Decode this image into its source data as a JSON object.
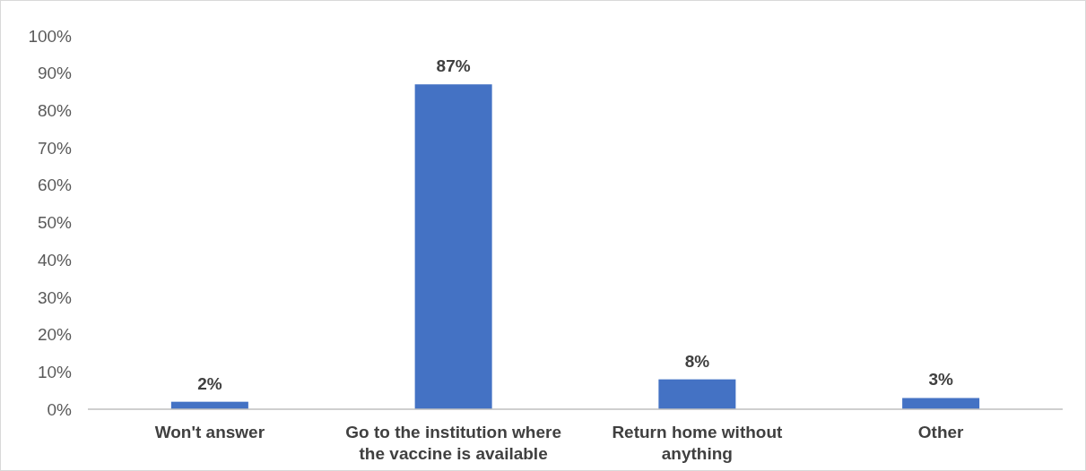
{
  "chart_data": {
    "type": "bar",
    "categories": [
      "Won't answer",
      "Go to the institution where the vaccine is available",
      "Return home without anything",
      "Other"
    ],
    "values": [
      2,
      87,
      8,
      3
    ],
    "color": "#4472c4",
    "value_labels": [
      "2%",
      "87%",
      "8%",
      "3%"
    ],
    "ylim": [
      0,
      100
    ],
    "yticks": [
      {
        "value": 0,
        "label": "0%"
      },
      {
        "value": 10,
        "label": "10%"
      },
      {
        "value": 20,
        "label": "20%"
      },
      {
        "value": 30,
        "label": "30%"
      },
      {
        "value": 40,
        "label": "40%"
      },
      {
        "value": 50,
        "label": "50%"
      },
      {
        "value": 60,
        "label": "60%"
      },
      {
        "value": 70,
        "label": "70%"
      },
      {
        "value": 80,
        "label": "80%"
      },
      {
        "value": 90,
        "label": "90%"
      },
      {
        "value": 100,
        "label": "100%"
      }
    ]
  }
}
